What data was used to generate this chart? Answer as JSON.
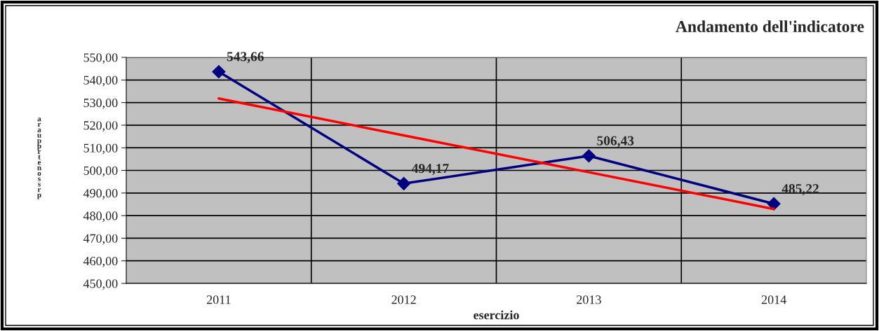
{
  "chart_data": {
    "type": "line",
    "title": "Andamento dell'indicatore",
    "xlabel": "esercizio",
    "ylabel": "araupprtenossrp",
    "categories": [
      "2011",
      "2012",
      "2013",
      "2014"
    ],
    "series": [
      {
        "color": "#000080",
        "values": [
          543.66,
          494.17,
          506.43,
          485.22
        ],
        "marker": "diamond",
        "value_labels": [
          "543,66",
          "494,17",
          "506,43",
          "485,22"
        ]
      },
      {
        "color": "#ff0000",
        "values": [
          531.8,
          515.5,
          499.2,
          482.9
        ],
        "marker": "none"
      }
    ],
    "ylim": [
      450,
      550
    ],
    "yticks": [
      {
        "value": 450,
        "label": "450,00"
      },
      {
        "value": 460,
        "label": "460,00"
      },
      {
        "value": 470,
        "label": "470,00"
      },
      {
        "value": 480,
        "label": "480,00"
      },
      {
        "value": 490,
        "label": "490,00"
      },
      {
        "value": 500,
        "label": "500,00"
      },
      {
        "value": 510,
        "label": "510,00"
      },
      {
        "value": 520,
        "label": "520,00"
      },
      {
        "value": 530,
        "label": "530,00"
      },
      {
        "value": 540,
        "label": "540,00"
      },
      {
        "value": 550,
        "label": "550,00"
      }
    ],
    "grid": true,
    "legend": false
  }
}
